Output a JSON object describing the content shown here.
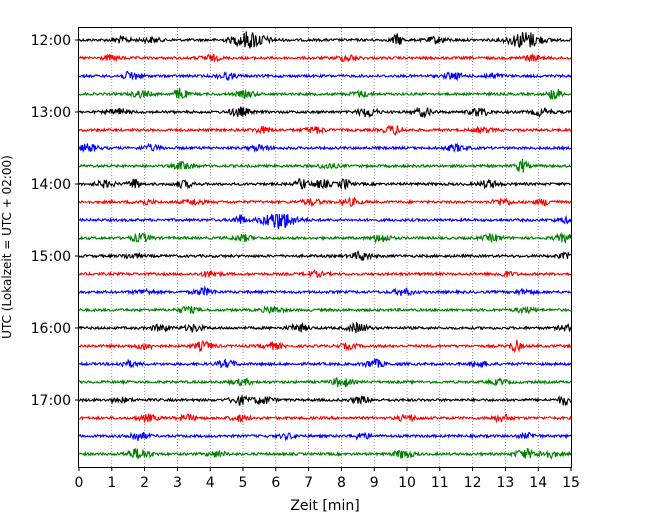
{
  "chart_data": {
    "type": "line",
    "title": "",
    "xlabel": "Zeit  [min]",
    "ylabel": "UTC (Lokalzeit = UTC + 02:00)",
    "xlim": [
      0,
      15
    ],
    "x_ticks": [
      "0",
      "1",
      "2",
      "3",
      "4",
      "5",
      "6",
      "7",
      "8",
      "9",
      "10",
      "11",
      "12",
      "13",
      "14",
      "15"
    ],
    "y_tick_labels": [
      "12:00",
      "13:00",
      "14:00",
      "15:00",
      "16:00",
      "17:00"
    ],
    "grid": "vertical dotted",
    "trace_colors": [
      "#000000",
      "#ff0000",
      "#0000ff",
      "#008000"
    ],
    "series": [
      {
        "start": "12:00",
        "events": [
          [
            1.3,
            0.3
          ],
          [
            2.2,
            0.25
          ],
          [
            5.2,
            0.9
          ],
          [
            9.7,
            0.6
          ],
          [
            10.9,
            0.35
          ],
          [
            13.6,
            0.9
          ]
        ]
      },
      {
        "start": "12:15",
        "events": [
          [
            1.0,
            0.25
          ],
          [
            4.0,
            0.3
          ],
          [
            8.2,
            0.35
          ],
          [
            13.8,
            0.3
          ]
        ]
      },
      {
        "start": "12:30",
        "events": [
          [
            1.6,
            0.45
          ],
          [
            4.5,
            0.3
          ],
          [
            11.4,
            0.35
          ],
          [
            12.6,
            0.25
          ]
        ]
      },
      {
        "start": "12:45",
        "events": [
          [
            1.9,
            0.35
          ],
          [
            3.1,
            0.7
          ],
          [
            5.1,
            0.35
          ],
          [
            8.6,
            0.3
          ],
          [
            14.5,
            0.7
          ]
        ]
      },
      {
        "start": "13:00",
        "events": [
          [
            1.2,
            0.35
          ],
          [
            4.9,
            0.5
          ],
          [
            8.8,
            0.5
          ],
          [
            10.5,
            0.45
          ],
          [
            12.2,
            0.45
          ],
          [
            14.1,
            0.4
          ]
        ]
      },
      {
        "start": "13:15",
        "events": [
          [
            5.6,
            0.3
          ],
          [
            7.2,
            0.35
          ],
          [
            9.6,
            0.45
          ],
          [
            12.3,
            0.25
          ]
        ]
      },
      {
        "start": "13:30",
        "events": [
          [
            0.3,
            0.4
          ],
          [
            2.2,
            0.3
          ],
          [
            5.5,
            0.3
          ],
          [
            11.5,
            0.35
          ]
        ]
      },
      {
        "start": "13:45",
        "events": [
          [
            3.2,
            0.45
          ],
          [
            7.6,
            0.25
          ],
          [
            13.5,
            0.7
          ]
        ]
      },
      {
        "start": "14:00",
        "events": [
          [
            0.8,
            0.35
          ],
          [
            1.7,
            0.55
          ],
          [
            3.2,
            0.35
          ],
          [
            6.8,
            0.6
          ],
          [
            7.4,
            0.4
          ],
          [
            8.1,
            0.55
          ],
          [
            12.5,
            0.4
          ]
        ]
      },
      {
        "start": "14:15",
        "events": [
          [
            2.0,
            0.25
          ],
          [
            3.5,
            0.3
          ],
          [
            7.1,
            0.3
          ],
          [
            8.3,
            0.35
          ],
          [
            12.9,
            0.35
          ],
          [
            14.2,
            0.3
          ]
        ]
      },
      {
        "start": "14:30",
        "events": [
          [
            4.9,
            0.55
          ],
          [
            6.1,
            0.95
          ],
          [
            14.8,
            0.25
          ]
        ]
      },
      {
        "start": "14:45",
        "events": [
          [
            1.9,
            0.45
          ],
          [
            5.0,
            0.35
          ],
          [
            9.2,
            0.45
          ],
          [
            12.6,
            0.35
          ],
          [
            14.8,
            0.4
          ]
        ]
      },
      {
        "start": "15:00",
        "events": [
          [
            1.6,
            0.25
          ],
          [
            8.6,
            0.45
          ],
          [
            14.9,
            0.3
          ]
        ]
      },
      {
        "start": "15:15",
        "events": [
          [
            4.0,
            0.3
          ],
          [
            7.2,
            0.25
          ],
          [
            13.0,
            0.25
          ]
        ]
      },
      {
        "start": "15:30",
        "events": [
          [
            2.0,
            0.25
          ],
          [
            3.8,
            0.4
          ],
          [
            9.9,
            0.35
          ],
          [
            13.6,
            0.25
          ]
        ]
      },
      {
        "start": "15:45",
        "events": [
          [
            3.3,
            0.35
          ],
          [
            5.9,
            0.35
          ],
          [
            13.6,
            0.3
          ]
        ]
      },
      {
        "start": "16:00",
        "events": [
          [
            2.5,
            0.35
          ],
          [
            3.5,
            0.35
          ],
          [
            6.7,
            0.4
          ],
          [
            8.5,
            0.5
          ],
          [
            14.9,
            0.3
          ]
        ]
      },
      {
        "start": "16:15",
        "events": [
          [
            2.0,
            0.3
          ],
          [
            3.8,
            0.45
          ],
          [
            5.9,
            0.35
          ],
          [
            8.2,
            0.25
          ],
          [
            13.3,
            0.6
          ]
        ]
      },
      {
        "start": "16:30",
        "events": [
          [
            1.5,
            0.3
          ],
          [
            4.5,
            0.35
          ],
          [
            9.0,
            0.45
          ],
          [
            12.2,
            0.3
          ]
        ]
      },
      {
        "start": "16:45",
        "events": [
          [
            5.0,
            0.3
          ],
          [
            8.0,
            0.5
          ],
          [
            12.8,
            0.25
          ]
        ]
      },
      {
        "start": "17:00",
        "events": [
          [
            1.3,
            0.25
          ],
          [
            4.9,
            0.45
          ],
          [
            5.6,
            0.45
          ],
          [
            8.6,
            0.35
          ],
          [
            14.8,
            0.55
          ]
        ]
      },
      {
        "start": "17:15",
        "events": [
          [
            2.1,
            0.35
          ],
          [
            3.3,
            0.3
          ],
          [
            4.9,
            0.3
          ],
          [
            10.0,
            0.3
          ],
          [
            12.9,
            0.35
          ]
        ]
      },
      {
        "start": "17:30",
        "events": [
          [
            1.8,
            0.45
          ],
          [
            6.4,
            0.25
          ],
          [
            8.6,
            0.3
          ],
          [
            13.7,
            0.25
          ]
        ]
      },
      {
        "start": "17:45",
        "events": [
          [
            1.7,
            0.4
          ],
          [
            2.0,
            0.3
          ],
          [
            4.2,
            0.3
          ],
          [
            9.9,
            0.45
          ],
          [
            13.6,
            0.5
          ],
          [
            14.3,
            0.4
          ]
        ]
      }
    ]
  }
}
